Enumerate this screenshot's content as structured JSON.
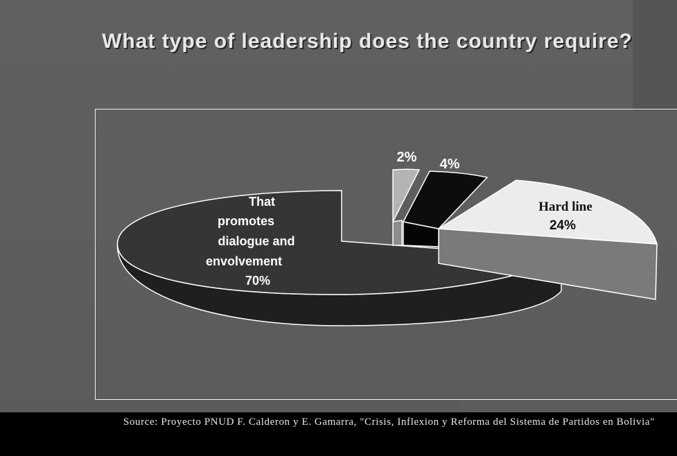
{
  "title": "What type of leadership does the country require?",
  "source": "Source: Proyecto PNUD F. Calderon y E. Gamarra, \"Crisis, Inflexion y Reforma del Sistema de Partidos en Bolivia\"",
  "chart_data": {
    "type": "pie",
    "style": "3d-exploded",
    "title": "What type of leadership does the country require?",
    "slices": [
      {
        "label_lines": [
          "That",
          "promotes",
          "dialogue and",
          "envolvement"
        ],
        "value_label": "70%",
        "value": 70,
        "color": "#353535",
        "side_color": "#1f1f1f"
      },
      {
        "label_lines": [
          "Hard line"
        ],
        "value_label": "24%",
        "value": 24,
        "color": "#ececec",
        "side_color": "#7a7a7a"
      },
      {
        "label_lines": [],
        "value_label": "4%",
        "value": 4,
        "color": "#0d0d0d",
        "side_color": "#050505"
      },
      {
        "label_lines": [],
        "value_label": "2%",
        "value": 2,
        "color": "#b4b4b4",
        "side_color": "#8c8c8c"
      }
    ]
  }
}
